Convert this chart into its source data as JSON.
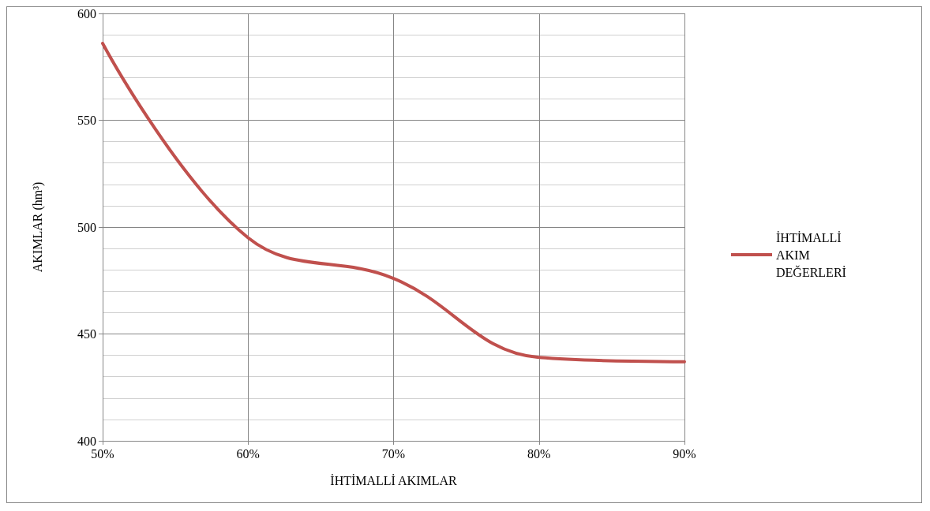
{
  "chart_data": {
    "type": "line",
    "xlabel": "İHTİMALLİ AKIMLAR",
    "ylabel": "AKIMLAR (hm³)",
    "x": [
      50,
      60,
      70,
      80,
      90
    ],
    "series": [
      {
        "name": "İHTİMALLİ AKIM DEĞERLERİ",
        "color": "#c0504d",
        "values": [
          586,
          495,
          476,
          439,
          437
        ]
      }
    ],
    "xlim": [
      50,
      90
    ],
    "xticks": [
      {
        "value": 50,
        "label": "50%"
      },
      {
        "value": 60,
        "label": "60%"
      },
      {
        "value": 70,
        "label": "70%"
      },
      {
        "value": 80,
        "label": "80%"
      },
      {
        "value": 90,
        "label": "90%"
      }
    ],
    "ylim": [
      400,
      600
    ],
    "yticks": [
      400,
      450,
      500,
      550,
      600
    ],
    "grid": true,
    "legend": "right",
    "marker": "none",
    "line_style": "solid"
  }
}
